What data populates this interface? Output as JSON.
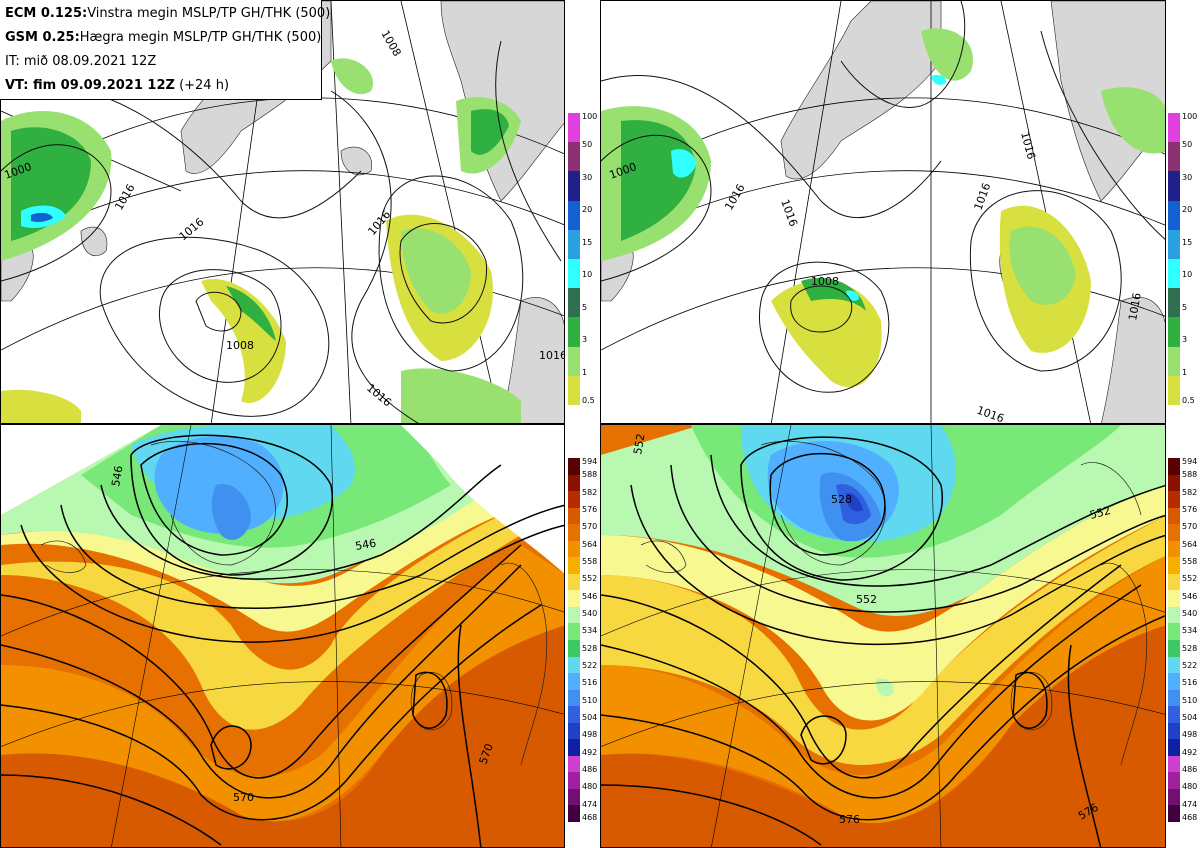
{
  "header": {
    "line1_bold": "ECM 0.125:",
    "line1_rest": "Vinstra megin MSLP/TP GH/THK (500)",
    "line2_bold": "GSM 0.25:",
    "line2_rest": "Hægra megin MSLP/TP GH/THK (500)",
    "line3": "IT: mið 08.09.2021 12Z",
    "line4_bold": "VT: fim 09.09.2021 12Z",
    "line4_rest": " (+24 h)"
  },
  "precip_scale": {
    "labels": [
      "100",
      "50",
      "30",
      "20",
      "15",
      "10",
      "5",
      "3",
      "1",
      "0.5"
    ],
    "colors": [
      "#e040e0",
      "#8b3070",
      "#20208a",
      "#1560d0",
      "#2aa0e0",
      "#30ffff",
      "#2f7050",
      "#30b040",
      "#98e070",
      "#d8e040"
    ]
  },
  "thickness_scale": {
    "labels": [
      "594",
      "588",
      "582",
      "576",
      "570",
      "564",
      "558",
      "552",
      "546",
      "540",
      "534",
      "528",
      "522",
      "516",
      "510",
      "504",
      "498",
      "492",
      "486",
      "480",
      "474",
      "468"
    ],
    "colors": [
      "#5a0000",
      "#8a1000",
      "#b82a00",
      "#d85a00",
      "#e67000",
      "#f29000",
      "#f8b000",
      "#f8d840",
      "#f8f890",
      "#b8f8b0",
      "#78e878",
      "#3ec864",
      "#60d8f0",
      "#50b0ff",
      "#4090f0",
      "#3060e0",
      "#2040c8",
      "#1020a0",
      "#d040d0",
      "#a020a0",
      "#701070",
      "#400040"
    ]
  },
  "contour_labels": {
    "top_left": [
      "1000",
      "1008",
      "1016",
      "1016",
      "1016",
      "1008",
      "1016",
      "1016"
    ],
    "top_right": [
      "1000",
      "1016",
      "1016",
      "1016",
      "1008",
      "1016",
      "1016",
      "1016"
    ],
    "bottom_left": [
      "546",
      "546",
      "570",
      "570"
    ],
    "bottom_right": [
      "552",
      "528",
      "552",
      "552",
      "576",
      "576"
    ]
  }
}
